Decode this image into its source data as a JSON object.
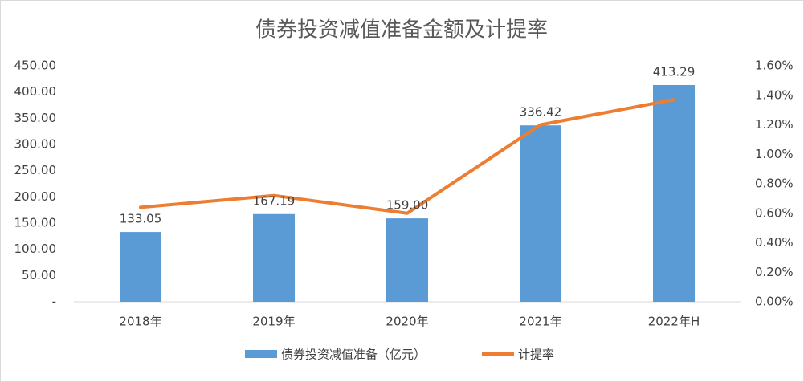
{
  "chart_data": {
    "type": "bar-line",
    "title": "债券投资减值准备金额及计提率",
    "categories": [
      "2018年",
      "2019年",
      "2020年",
      "2021年",
      "2022年H"
    ],
    "series": [
      {
        "name": "债券投资减值准备（亿元）",
        "type": "bar",
        "color": "#5b9bd5",
        "values": [
          133.05,
          167.19,
          159.0,
          336.42,
          413.29
        ],
        "value_labels": [
          "133.05",
          "167.19",
          "159.00",
          "336.42",
          "413.29"
        ]
      },
      {
        "name": "计提率",
        "type": "line",
        "color": "#ed7d31",
        "axis": "y2",
        "values": [
          0.64,
          0.72,
          0.6,
          1.2,
          1.37
        ]
      }
    ],
    "ylim": [
      0,
      450
    ],
    "yticks": [
      {
        "value": 0,
        "label": "-"
      },
      {
        "value": 50,
        "label": "50.00"
      },
      {
        "value": 100,
        "label": "100.00"
      },
      {
        "value": 150,
        "label": "150.00"
      },
      {
        "value": 200,
        "label": "200.00"
      },
      {
        "value": 250,
        "label": "250.00"
      },
      {
        "value": 300,
        "label": "300.00"
      },
      {
        "value": 350,
        "label": "350.00"
      },
      {
        "value": 400,
        "label": "400.00"
      },
      {
        "value": 450,
        "label": "450.00"
      }
    ],
    "y2lim": [
      0,
      1.6
    ],
    "y2ticks": [
      {
        "value": 0,
        "label": "0.00%"
      },
      {
        "value": 0.2,
        "label": "0.20%"
      },
      {
        "value": 0.4,
        "label": "0.40%"
      },
      {
        "value": 0.6,
        "label": "0.60%"
      },
      {
        "value": 0.8,
        "label": "0.80%"
      },
      {
        "value": 1.0,
        "label": "1.00%"
      },
      {
        "value": 1.2,
        "label": "1.20%"
      },
      {
        "value": 1.4,
        "label": "1.40%"
      },
      {
        "value": 1.6,
        "label": "1.60%"
      }
    ],
    "grid": false
  }
}
